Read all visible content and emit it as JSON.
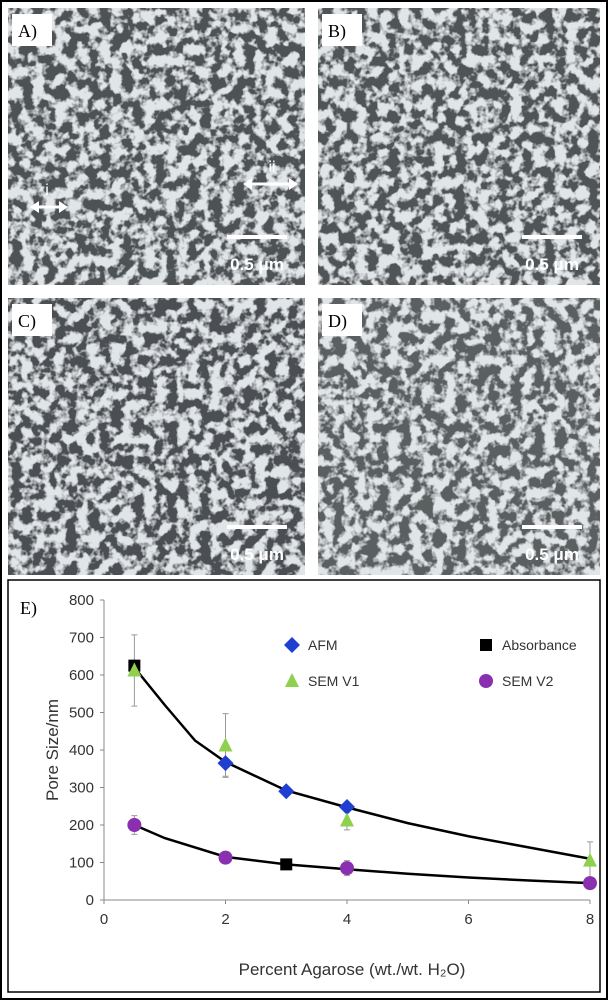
{
  "panels": [
    {
      "label": "A)",
      "scale": "0.5 μm"
    },
    {
      "label": "B)",
      "scale": "0.5 μm"
    },
    {
      "label": "C)",
      "scale": "0.5 μm"
    },
    {
      "label": "D)",
      "scale": "0.5 μm"
    }
  ],
  "annotations": [
    "i",
    "ii"
  ],
  "chart_data": {
    "type": "scatter",
    "panel_label": "E)",
    "x_label": "Percent Agarose (wt./wt. H₂O)",
    "y_label": "Pore Size/nm",
    "xlim": [
      0,
      8
    ],
    "xticks": [
      0,
      2,
      4,
      6,
      8
    ],
    "ylim": [
      0,
      800
    ],
    "yticks": [
      0,
      100,
      200,
      300,
      400,
      500,
      600,
      700,
      800
    ],
    "series": [
      {
        "name": "AFM",
        "color": "#1f3fd0",
        "marker": "diamond",
        "x": [
          2,
          3,
          4
        ],
        "values": [
          365,
          290,
          248
        ],
        "errors": [
          35,
          null,
          null
        ]
      },
      {
        "name": "Absorbance",
        "color": "#000000",
        "marker": "square",
        "x": [
          0.5,
          3
        ],
        "values": [
          625,
          95
        ],
        "errors": [
          null,
          null
        ]
      },
      {
        "name": "SEM V1",
        "color": "#8fd14f",
        "marker": "triangle",
        "x": [
          0.5,
          2,
          4,
          8
        ],
        "values": [
          612,
          412,
          212,
          105
        ],
        "errors": [
          95,
          85,
          25,
          50
        ]
      },
      {
        "name": "SEM V2",
        "color": "#8a2fb0",
        "marker": "circle",
        "x": [
          0.5,
          2,
          4,
          8
        ],
        "values": [
          200,
          113,
          85,
          45
        ],
        "errors": [
          25,
          null,
          20,
          null
        ]
      }
    ],
    "curves": [
      {
        "color": "#000000",
        "x": [
          0.5,
          1,
          1.5,
          2,
          3,
          4,
          5,
          6,
          7,
          8
        ],
        "values": [
          620,
          520,
          425,
          368,
          292,
          247,
          205,
          170,
          140,
          110
        ]
      },
      {
        "color": "#000000",
        "x": [
          0.5,
          1,
          2,
          3,
          4,
          5,
          6,
          7,
          8
        ],
        "values": [
          200,
          165,
          115,
          95,
          82,
          70,
          60,
          52,
          45
        ]
      }
    ]
  }
}
